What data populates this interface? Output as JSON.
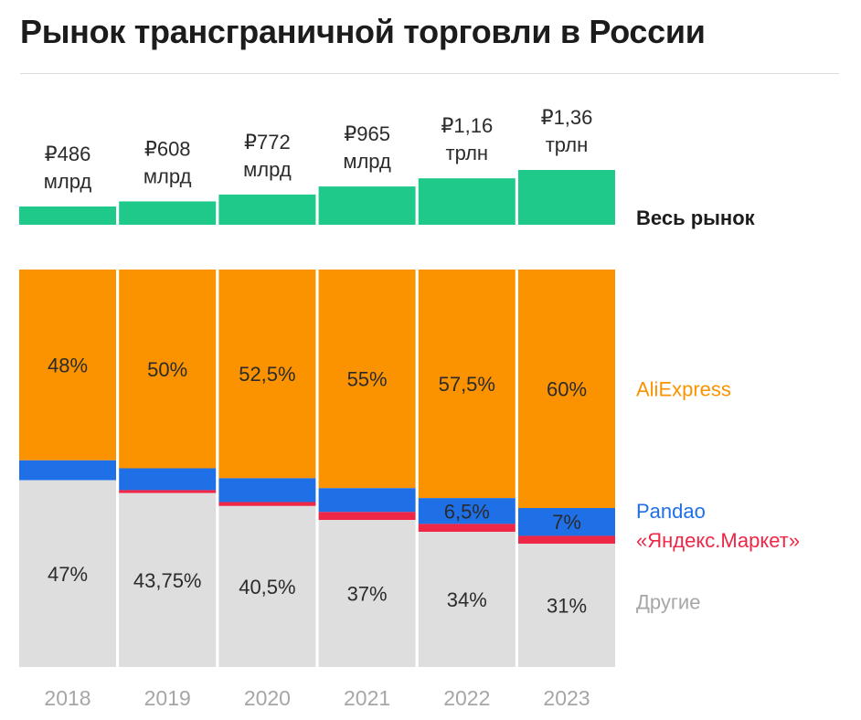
{
  "title": "Рынок трансграничной торговли в России",
  "colors": {
    "total": "#1ec98a",
    "aliexpress": "#fb9300",
    "pandao": "#1f6fe6",
    "yandex": "#ee2747",
    "others": "#dedede",
    "year_text": "#a6a6a6",
    "value_text": "#2b2b2b"
  },
  "chart_data": {
    "type": "bar",
    "categories": [
      "2018",
      "2019",
      "2020",
      "2021",
      "2022",
      "2023"
    ],
    "total_market": {
      "name": "Весь рынок",
      "values_rub_bn": [
        486,
        608,
        772,
        965,
        1160,
        1360
      ],
      "labels": [
        [
          "₽486",
          "млрд"
        ],
        [
          "₽608",
          "млрд"
        ],
        [
          "₽772",
          "млрд"
        ],
        [
          "₽965",
          "млрд"
        ],
        [
          "₽1,16",
          "трлн"
        ],
        [
          "₽1,36",
          "трлн"
        ]
      ]
    },
    "share_series": [
      {
        "name": "AliExpress",
        "key": "aliexpress",
        "values": [
          48,
          50,
          52.5,
          55,
          57.5,
          60
        ],
        "labels": [
          "48%",
          "50%",
          "52,5%",
          "55%",
          "57,5%",
          "60%"
        ]
      },
      {
        "name": "Pandao",
        "key": "pandao",
        "values": [
          5,
          5.5,
          6,
          6,
          6.5,
          7
        ],
        "labels": [
          "",
          "",
          "",
          "",
          "6,5%",
          "7%"
        ]
      },
      {
        "name": "«Яндекс.Маркет»",
        "key": "yandex",
        "values": [
          0,
          0.75,
          1,
          2,
          2,
          2
        ],
        "labels": [
          "",
          "",
          "",
          "",
          "",
          ""
        ]
      },
      {
        "name": "Другие",
        "key": "others",
        "values": [
          47,
          43.75,
          40.5,
          37,
          34,
          31
        ],
        "labels": [
          "47%",
          "43,75%",
          "40,5%",
          "37%",
          "34%",
          "31%"
        ]
      }
    ],
    "ylim": [
      0,
      100
    ],
    "legend_position": "right",
    "grid": false
  }
}
